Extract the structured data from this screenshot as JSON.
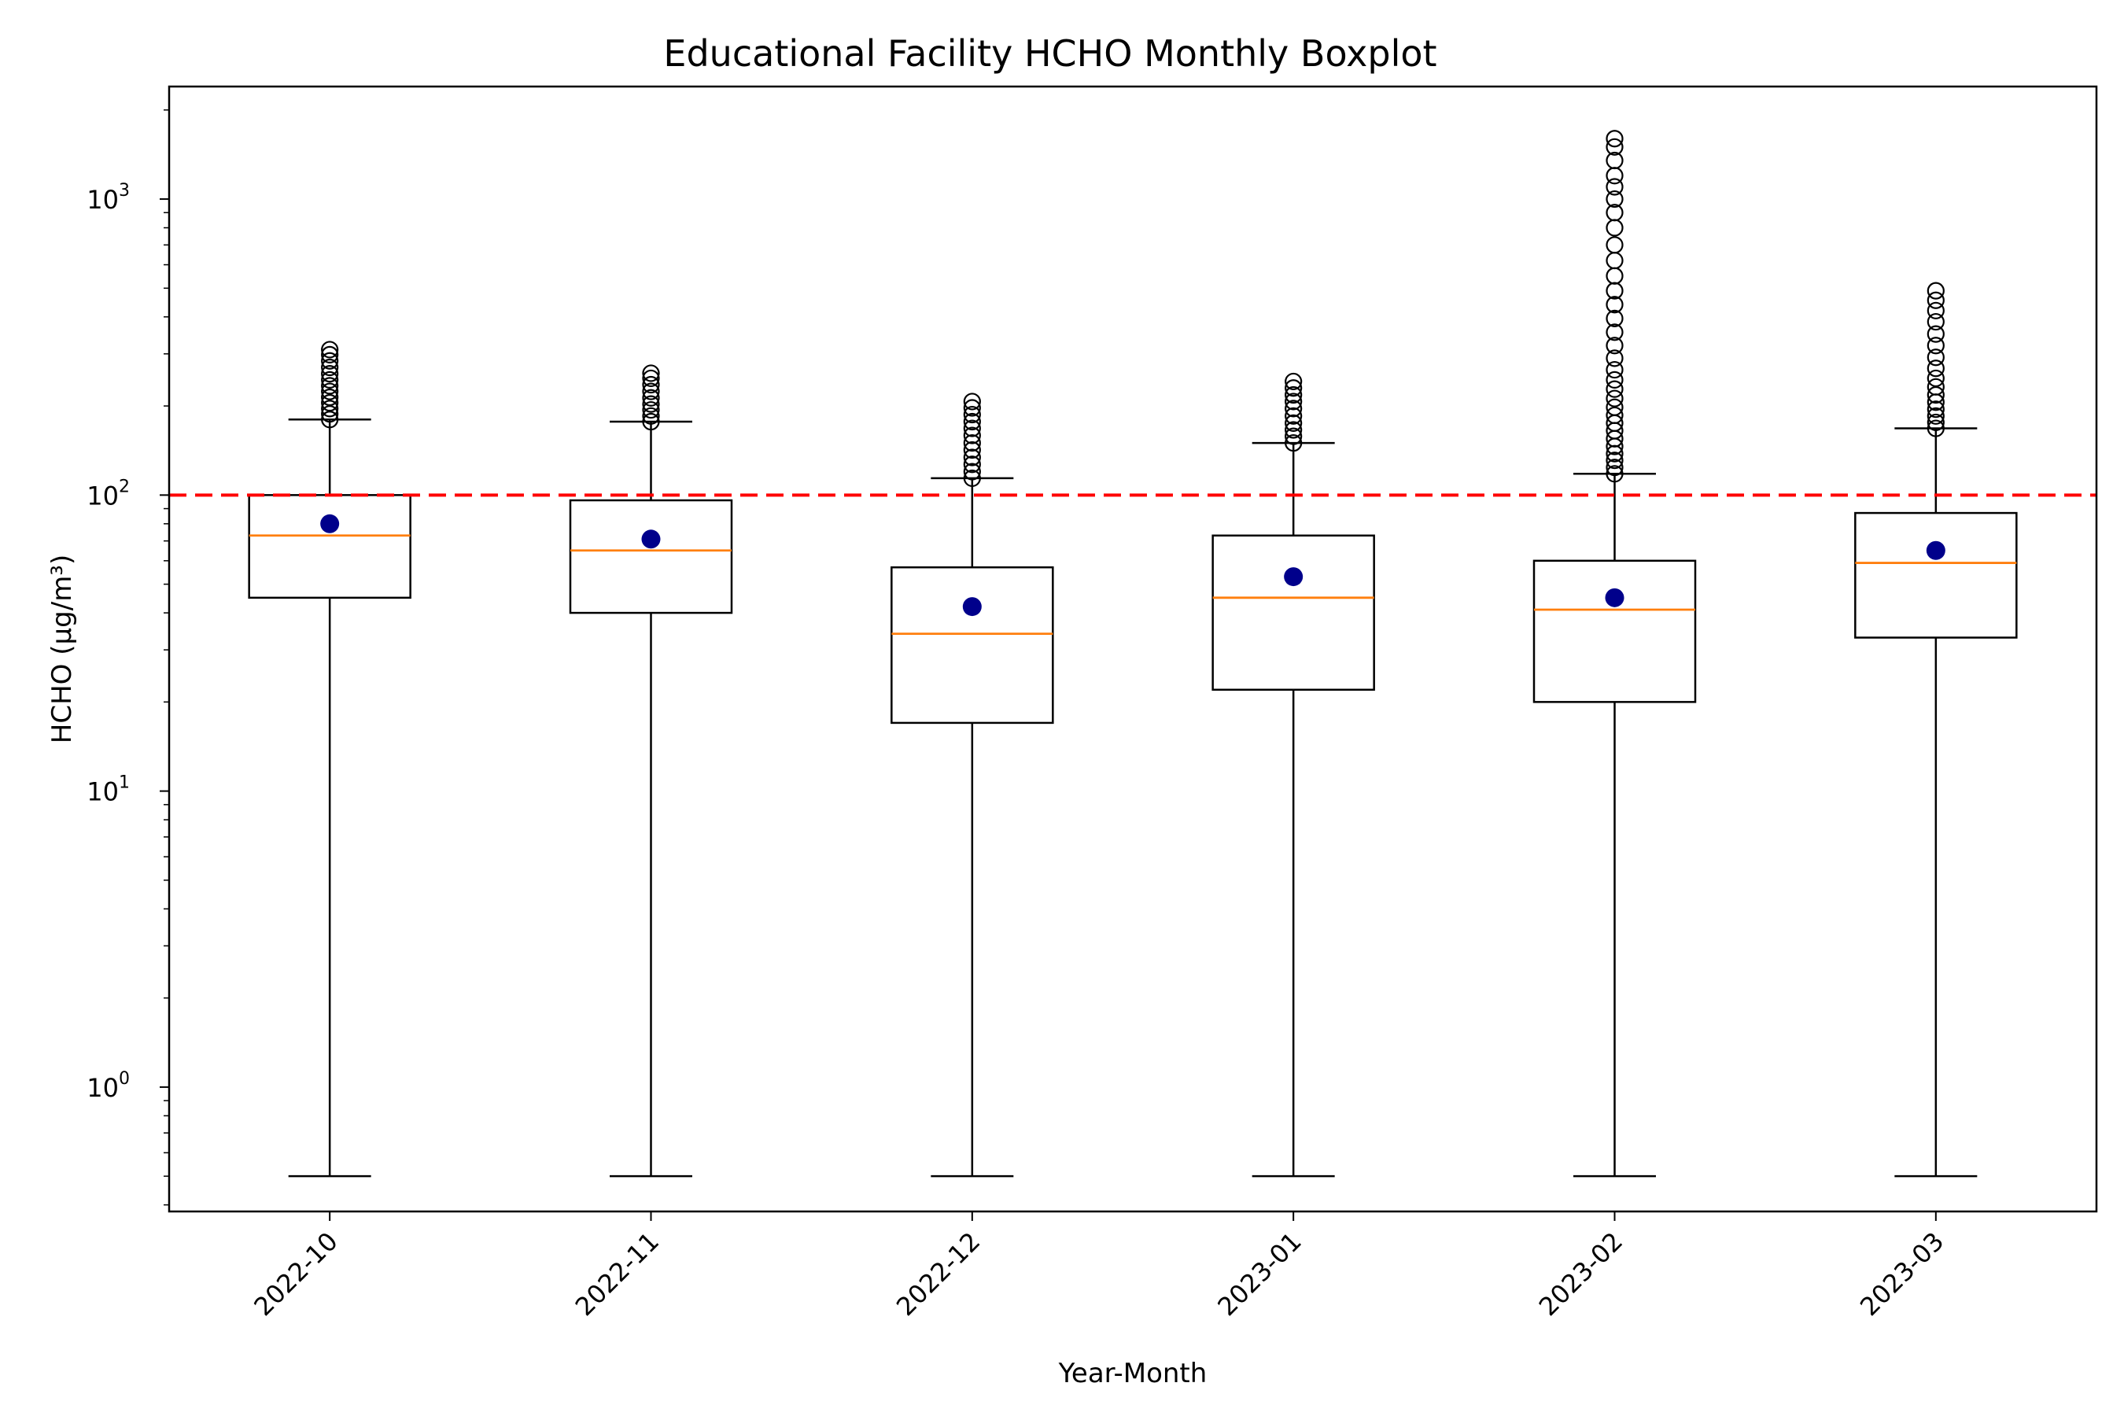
{
  "chart_data": {
    "type": "boxplot",
    "title": "Educational Facility HCHO Monthly Boxplot",
    "xlabel": "Year-Month",
    "ylabel": "HCHO (µg/m³)",
    "y_scale": "log",
    "ylim": [
      0.38,
      2400
    ],
    "y_ticks": [
      {
        "value": 1,
        "base": "10",
        "exp": "0"
      },
      {
        "value": 10,
        "base": "10",
        "exp": "1"
      },
      {
        "value": 100,
        "base": "10",
        "exp": "2"
      },
      {
        "value": 1000,
        "base": "10",
        "exp": "3"
      }
    ],
    "categories": [
      "2022-10",
      "2022-11",
      "2022-12",
      "2023-01",
      "2023-02",
      "2023-03"
    ],
    "boxes": [
      {
        "whisker_low": 0.5,
        "q1": 45,
        "median": 73,
        "q3": 100,
        "whisker_high": 180,
        "mean": 80,
        "outliers": [
          180,
          188,
          196,
          205,
          214,
          224,
          234,
          245,
          257,
          270,
          284,
          298,
          310
        ]
      },
      {
        "whisker_low": 0.5,
        "q1": 40,
        "median": 65,
        "q3": 96,
        "whisker_high": 177,
        "mean": 71,
        "outliers": [
          177,
          185,
          194,
          203,
          213,
          224,
          236,
          248,
          258
        ]
      },
      {
        "whisker_low": 0.5,
        "q1": 17,
        "median": 34,
        "q3": 57,
        "whisker_high": 114,
        "mean": 42,
        "outliers": [
          114,
          120,
          127,
          134,
          142,
          150,
          159,
          168,
          177,
          187,
          197,
          207
        ]
      },
      {
        "whisker_low": 0.5,
        "q1": 22,
        "median": 45,
        "q3": 73,
        "whisker_high": 150,
        "mean": 53,
        "outliers": [
          150,
          158,
          166,
          175,
          185,
          196,
          207,
          218,
          230,
          242
        ]
      },
      {
        "whisker_low": 0.5,
        "q1": 20,
        "median": 41,
        "q3": 60,
        "whisker_high": 118,
        "mean": 45,
        "outliers": [
          118,
          124,
          131,
          138,
          146,
          155,
          165,
          175,
          186,
          198,
          212,
          228,
          245,
          265,
          290,
          320,
          355,
          395,
          440,
          490,
          550,
          620,
          700,
          800,
          900,
          1000,
          1100,
          1200,
          1350,
          1500,
          1600
        ]
      },
      {
        "whisker_low": 0.5,
        "q1": 33,
        "median": 59,
        "q3": 87,
        "whisker_high": 168,
        "mean": 65,
        "outliers": [
          168,
          176,
          185,
          195,
          206,
          218,
          232,
          248,
          268,
          292,
          320,
          350,
          385,
          420,
          455,
          490
        ]
      }
    ],
    "reference_line": {
      "value": 100
    },
    "colors": {
      "box": "#000000",
      "median": "#ff7f0e",
      "mean": "#00008b",
      "reference_line": "#ff0000"
    },
    "grid": false
  }
}
